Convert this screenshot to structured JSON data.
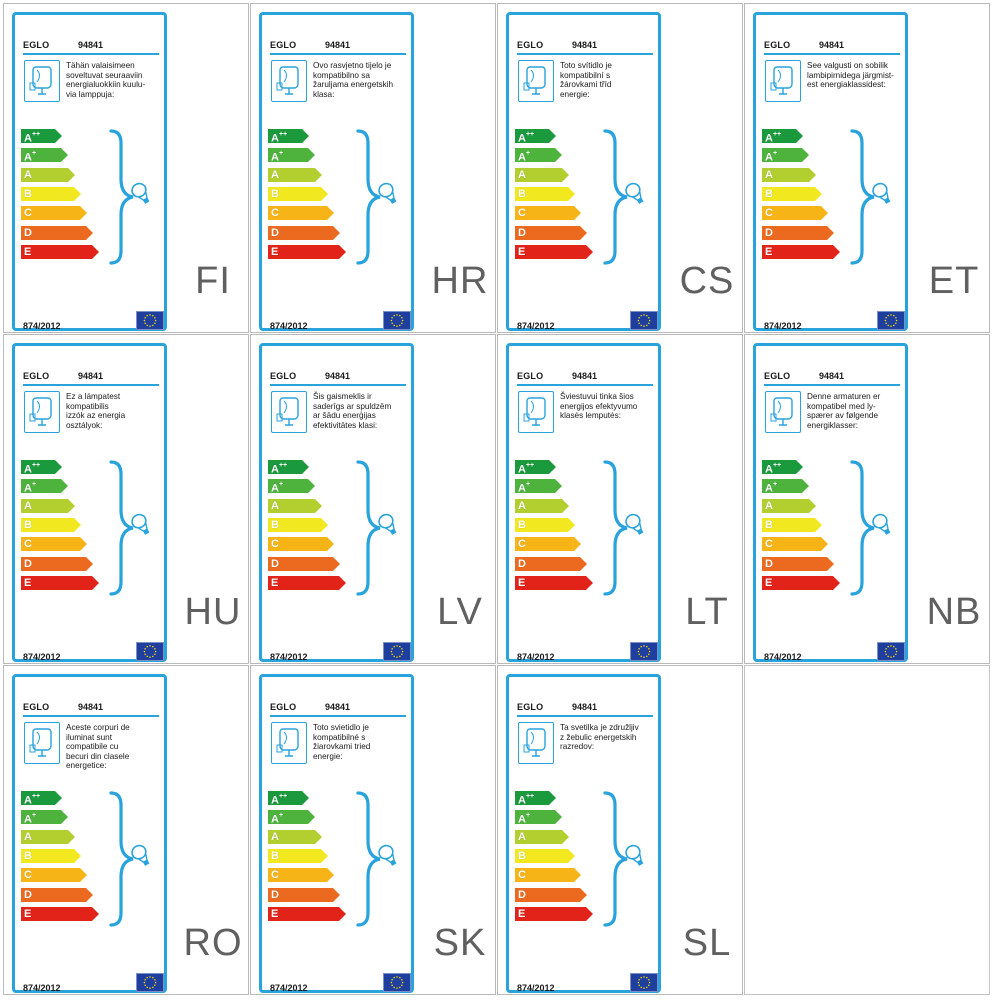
{
  "labels": [
    {
      "brand": "EGLO",
      "model": "94841",
      "text": "Tähän valaisimeen\nsoveltuvat seuraaviin\nenergialuokkiin kuulu-\nvia lamppuja:",
      "regulation": "874/2012",
      "language": "FI"
    },
    {
      "brand": "EGLO",
      "model": "94841",
      "text": "Ovo rasvjetno tijelo je\nkompatibilno sa\nžaruljama energetskih\nklasa:",
      "regulation": "874/2012",
      "language": "HR"
    },
    {
      "brand": "EGLO",
      "model": "94841",
      "text": "Toto svítidlo je\nkompatibilní s\nžárovkami tříd\nenergie:",
      "regulation": "874/2012",
      "language": "CS"
    },
    {
      "brand": "EGLO",
      "model": "94841",
      "text": "See valgusti on sobilik\nlambipirnidega järgmist-\nest energiaklassidest:",
      "regulation": "874/2012",
      "language": "ET"
    },
    {
      "brand": "EGLO",
      "model": "94841",
      "text": "Ez a lámpatest\nkompatibilis\nizzók az energia\nosztályok:",
      "regulation": "874/2012",
      "language": "HU"
    },
    {
      "brand": "EGLO",
      "model": "94841",
      "text": "Šis gaismeklis ir\nsaderīgs ar spuldzēm\nar šādu enerģijas\nefektivitātes klasi:",
      "regulation": "874/2012",
      "language": "LV"
    },
    {
      "brand": "EGLO",
      "model": "94841",
      "text": "Šviestuvui tinka šios\nenergijos efektyvumo\nklasės lemputės:",
      "regulation": "874/2012",
      "language": "LT"
    },
    {
      "brand": "EGLO",
      "model": "94841",
      "text": "Denne armaturen er\nkompatibel med ly-\nspærer av følgende\nenergiklasser:",
      "regulation": "874/2012",
      "language": "NB"
    },
    {
      "brand": "EGLO",
      "model": "94841",
      "text": "Aceste corpuri de\niluminat sunt\ncompatibile cu\nbecuri din clasele\nenergetice:",
      "regulation": "874/2012",
      "language": "RO"
    },
    {
      "brand": "EGLO",
      "model": "94841",
      "text": "Toto svietidlo je\nkompatibilné s\nžiarovkami tried\nenergie:",
      "regulation": "874/2012",
      "language": "SK"
    },
    {
      "brand": "EGLO",
      "model": "94841",
      "text": "Ta svetilka je združljiv\nz žebulic energetskih\nrazredov:",
      "regulation": "874/2012",
      "language": "SL"
    }
  ],
  "energy_classes": [
    {
      "letter": "A",
      "sup": "++",
      "color": "#1a9a3c"
    },
    {
      "letter": "A",
      "sup": "+",
      "color": "#4db33d"
    },
    {
      "letter": "A",
      "sup": "",
      "color": "#b2cf2f"
    },
    {
      "letter": "B",
      "sup": "",
      "color": "#f1e820"
    },
    {
      "letter": "C",
      "sup": "",
      "color": "#f7b417"
    },
    {
      "letter": "D",
      "sup": "",
      "color": "#ec6a1f"
    },
    {
      "letter": "E",
      "sup": "",
      "color": "#e2231a"
    }
  ],
  "colors": {
    "accent": "#29a3dc",
    "eu_flag": "#1f3f9e",
    "eu_stars": "#ffdd00"
  },
  "icons": [
    "lamp-fixture-icon",
    "light-bulb-icon",
    "eu-flag-icon",
    "brace-icon"
  ]
}
